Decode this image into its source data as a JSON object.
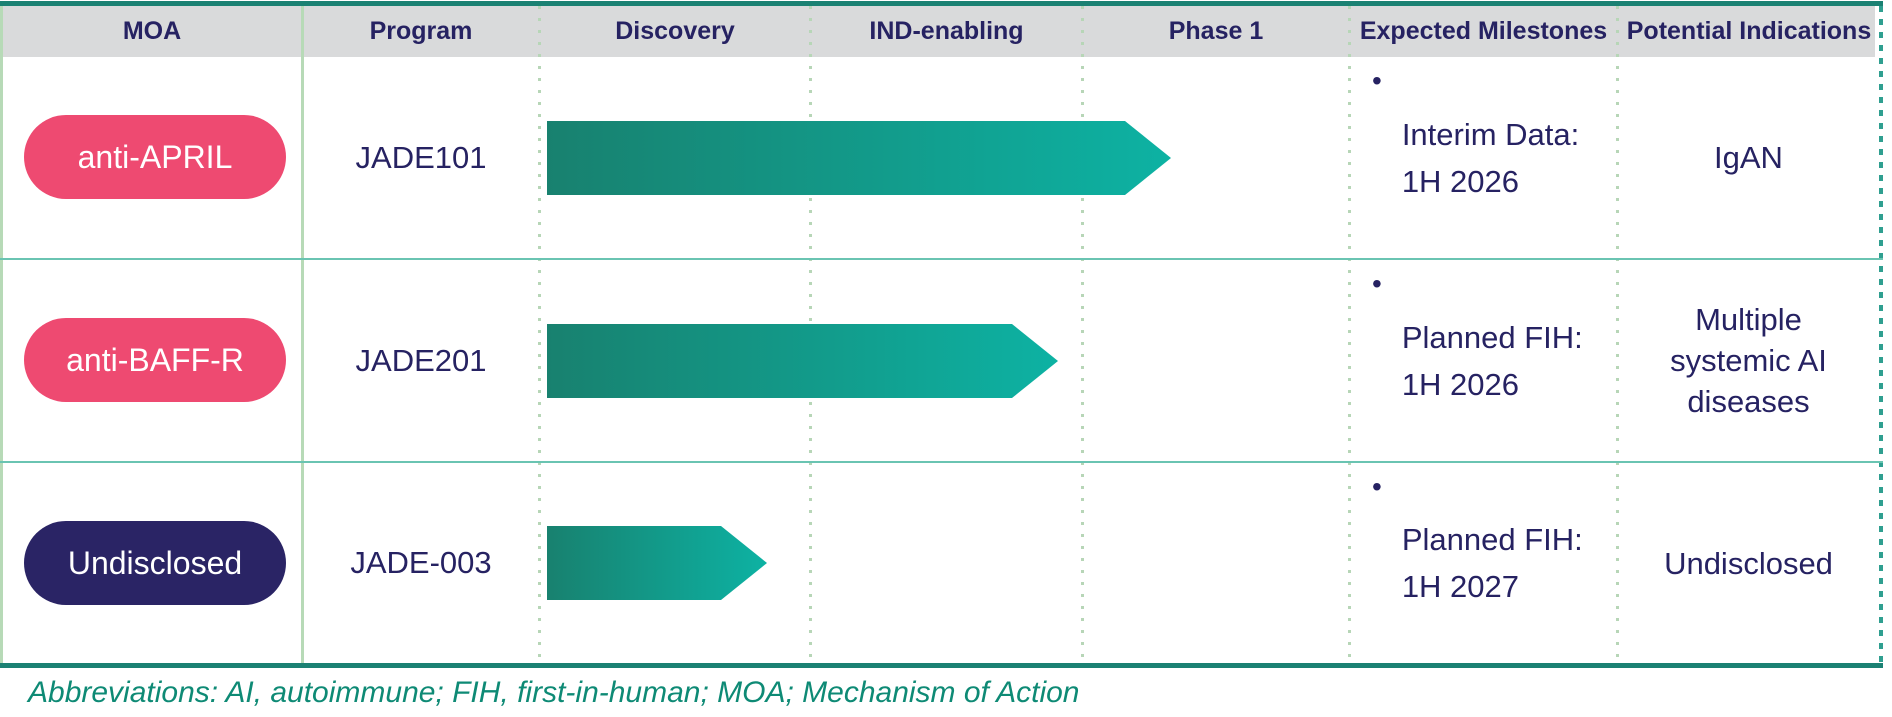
{
  "colors": {
    "accent_dark_teal_border": "#1b8173",
    "row_line_teal": "#6ac4b2",
    "column_divider_green": "#b7dab7",
    "right_edge_dash_teal": "#2f9f90",
    "header_background": "#d9dadb",
    "text_navy": "#262262",
    "pill_pink": "#ee4a71",
    "pill_navy": "#2a2465",
    "arrow_gradient_start": "#18816f",
    "arrow_gradient_end": "#0db2a3",
    "footnote_teal": "#0e8a75"
  },
  "table": {
    "columns": [
      "MOA",
      "Program",
      "Discovery",
      "IND-enabling",
      "Phase 1",
      "Expected Milestones",
      "Potential Indications"
    ],
    "rows": [
      {
        "moa": {
          "label": "anti-APRIL",
          "pill_style": "background:#ee4a71"
        },
        "program": "JADE101",
        "arrow": {
          "spans": "Discovery through early Phase 1",
          "style": "left:547px;top:121px;width:624px;height:74px"
        },
        "milestone": {
          "bullet": "•",
          "line1": "Interim Data:",
          "line2": "1H 2026"
        },
        "indication": "IgAN"
      },
      {
        "moa": {
          "label": "anti-BAFF-R",
          "pill_style": "background:#ee4a71"
        },
        "program": "JADE201",
        "arrow": {
          "spans": "Discovery through end of IND-enabling",
          "style": "left:547px;top:324px;width:511px;height:74px"
        },
        "milestone": {
          "bullet": "•",
          "line1": "Planned FIH:",
          "line2": "1H 2026"
        },
        "indication": "Multiple systemic AI diseases"
      },
      {
        "moa": {
          "label": "Undisclosed",
          "pill_style": "background:#2a2465"
        },
        "program": "JADE-003",
        "arrow": {
          "spans": "Partway through Discovery",
          "style": "left:547px;top:526px;width:220px;height:74px"
        },
        "milestone": {
          "bullet": "•",
          "line1": "Planned FIH:",
          "line2": "1H 2027"
        },
        "indication": "Undisclosed"
      }
    ],
    "footnote": "Abbreviations: AI, autoimmune; FIH, first-in-human; MOA; Mechanism of Action"
  },
  "chart_data": {
    "type": "gantt-pipeline",
    "stages": [
      "Discovery",
      "IND-enabling",
      "Phase 1"
    ],
    "series": [
      {
        "name": "JADE101",
        "moa": "anti-APRIL",
        "start_stage": 0,
        "end_stage": 2.33,
        "milestone": "Interim Data: 1H 2026",
        "indication": "IgAN"
      },
      {
        "name": "JADE201",
        "moa": "anti-BAFF-R",
        "start_stage": 0,
        "end_stage": 1.91,
        "milestone": "Planned FIH: 1H 2026",
        "indication": "Multiple systemic AI diseases"
      },
      {
        "name": "JADE-003",
        "moa": "Undisclosed",
        "start_stage": 0,
        "end_stage": 0.84,
        "milestone": "Planned FIH: 1H 2027",
        "indication": "Undisclosed"
      }
    ],
    "legend_position": "none",
    "grid": "dotted vertical stage dividers"
  }
}
